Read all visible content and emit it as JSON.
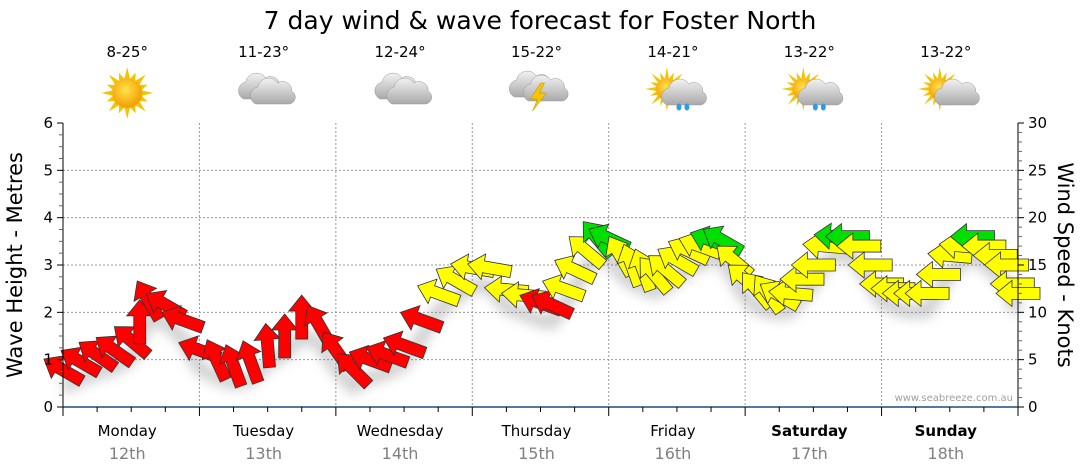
{
  "chart_data": {
    "type": "scatter",
    "title": "7 day wind & wave forecast for Foster North",
    "ylabel": "Wave Height - Metres",
    "y2label": "Wind Speed - Knots",
    "ylim": [
      0,
      6
    ],
    "y2lim": [
      0,
      30
    ],
    "yticks": [
      "0",
      "1",
      "2",
      "3",
      "4",
      "5",
      "6"
    ],
    "y2ticks": [
      "0",
      "5",
      "10",
      "15",
      "20",
      "25",
      "30"
    ],
    "grid": true,
    "watermark": "www.seabreeze.com.au",
    "days": [
      {
        "name": "Monday",
        "date": "12th",
        "temp": "8-25°",
        "icon": "sunny-icon",
        "bold": false
      },
      {
        "name": "Tuesday",
        "date": "13th",
        "temp": "11-23°",
        "icon": "cloudy-icon",
        "bold": false
      },
      {
        "name": "Wednesday",
        "date": "14th",
        "temp": "12-24°",
        "icon": "cloudy-icon",
        "bold": false
      },
      {
        "name": "Thursday",
        "date": "15th",
        "temp": "15-22°",
        "icon": "storm-icon",
        "bold": false
      },
      {
        "name": "Friday",
        "date": "16th",
        "temp": "14-21°",
        "icon": "sun-cloud-rain-icon",
        "bold": false
      },
      {
        "name": "Saturday",
        "date": "17th",
        "temp": "13-22°",
        "icon": "sun-cloud-rain-icon",
        "bold": true
      },
      {
        "name": "Sunday",
        "date": "18th",
        "temp": "13-22°",
        "icon": "sun-cloud-icon",
        "bold": true
      }
    ],
    "colors": {
      "red": "#ff0000",
      "yellow": "#ffff00",
      "green": "#00e000"
    },
    "wind_series_note": "t = hours from Monday 00:00, kt = wind speed knots, from = direction wind comes from (degrees)",
    "wind": [
      {
        "t": 0,
        "kt": 3.9,
        "from": 120,
        "c": "red"
      },
      {
        "t": 3,
        "kt": 4.8,
        "from": 120,
        "c": "red"
      },
      {
        "t": 6,
        "kt": 5.5,
        "from": 125,
        "c": "red"
      },
      {
        "t": 9,
        "kt": 6,
        "from": 125,
        "c": "red"
      },
      {
        "t": 12,
        "kt": 7,
        "from": 130,
        "c": "red"
      },
      {
        "t": 13.5,
        "kt": 9,
        "from": 180,
        "c": "red"
      },
      {
        "t": 15,
        "kt": 11.3,
        "from": 150,
        "c": "red"
      },
      {
        "t": 18,
        "kt": 10.8,
        "from": 120,
        "c": "red"
      },
      {
        "t": 21,
        "kt": 9.2,
        "from": 110,
        "c": "red"
      },
      {
        "t": 24,
        "kt": 6,
        "from": 110,
        "c": "red"
      },
      {
        "t": 27,
        "kt": 5,
        "from": 155,
        "c": "red"
      },
      {
        "t": 30,
        "kt": 4.4,
        "from": 160,
        "c": "red"
      },
      {
        "t": 33,
        "kt": 4.8,
        "from": 160,
        "c": "red"
      },
      {
        "t": 36,
        "kt": 6.5,
        "from": 175,
        "c": "red"
      },
      {
        "t": 39,
        "kt": 7.5,
        "from": 180,
        "c": "red"
      },
      {
        "t": 42,
        "kt": 9.5,
        "from": 180,
        "c": "red"
      },
      {
        "t": 45,
        "kt": 8.7,
        "from": 150,
        "c": "red"
      },
      {
        "t": 48,
        "kt": 6,
        "from": 145,
        "c": "red"
      },
      {
        "t": 51,
        "kt": 4,
        "from": 135,
        "c": "red"
      },
      {
        "t": 54,
        "kt": 5,
        "from": 110,
        "c": "red"
      },
      {
        "t": 57,
        "kt": 5.5,
        "from": 110,
        "c": "red"
      },
      {
        "t": 60,
        "kt": 6.5,
        "from": 110,
        "c": "red"
      },
      {
        "t": 63,
        "kt": 9.2,
        "from": 110,
        "c": "red"
      },
      {
        "t": 66,
        "kt": 12,
        "from": 110,
        "c": "yellow"
      },
      {
        "t": 69,
        "kt": 13.4,
        "from": 120,
        "c": "yellow"
      },
      {
        "t": 72,
        "kt": 14.7,
        "from": 100,
        "c": "yellow"
      },
      {
        "t": 75,
        "kt": 14.7,
        "from": 100,
        "c": "yellow"
      },
      {
        "t": 78,
        "kt": 12.4,
        "from": 95,
        "c": "yellow"
      },
      {
        "t": 81,
        "kt": 11.8,
        "from": 95,
        "c": "yellow"
      },
      {
        "t": 84,
        "kt": 11,
        "from": 110,
        "c": "red"
      },
      {
        "t": 86,
        "kt": 10.8,
        "from": 115,
        "c": "red"
      },
      {
        "t": 88,
        "kt": 12.5,
        "from": 110,
        "c": "yellow"
      },
      {
        "t": 90,
        "kt": 14.5,
        "from": 115,
        "c": "yellow"
      },
      {
        "t": 92,
        "kt": 16.5,
        "from": 130,
        "c": "yellow"
      },
      {
        "t": 94,
        "kt": 17.8,
        "from": 140,
        "c": "green"
      },
      {
        "t": 96,
        "kt": 17.8,
        "from": 115,
        "c": "green"
      },
      {
        "t": 98,
        "kt": 16,
        "from": 150,
        "c": "yellow"
      },
      {
        "t": 100,
        "kt": 15,
        "from": 160,
        "c": "yellow"
      },
      {
        "t": 102,
        "kt": 14.5,
        "from": 160,
        "c": "yellow"
      },
      {
        "t": 104,
        "kt": 14,
        "from": 140,
        "c": "yellow"
      },
      {
        "t": 106,
        "kt": 14.5,
        "from": 130,
        "c": "yellow"
      },
      {
        "t": 108,
        "kt": 15.5,
        "from": 120,
        "c": "yellow"
      },
      {
        "t": 110,
        "kt": 16.5,
        "from": 115,
        "c": "yellow"
      },
      {
        "t": 112,
        "kt": 17,
        "from": 110,
        "c": "yellow"
      },
      {
        "t": 114,
        "kt": 17.6,
        "from": 110,
        "c": "green"
      },
      {
        "t": 116,
        "kt": 17.6,
        "from": 120,
        "c": "green"
      },
      {
        "t": 118,
        "kt": 15.5,
        "from": 130,
        "c": "yellow"
      },
      {
        "t": 120,
        "kt": 13.5,
        "from": 130,
        "c": "yellow"
      },
      {
        "t": 122,
        "kt": 12.4,
        "from": 140,
        "c": "yellow"
      },
      {
        "t": 124,
        "kt": 12,
        "from": 145,
        "c": "yellow"
      },
      {
        "t": 126,
        "kt": 11.8,
        "from": 120,
        "c": "yellow"
      },
      {
        "t": 128,
        "kt": 12,
        "from": 95,
        "c": "yellow"
      },
      {
        "t": 130,
        "kt": 13.5,
        "from": 90,
        "c": "yellow"
      },
      {
        "t": 132,
        "kt": 15,
        "from": 90,
        "c": "yellow"
      },
      {
        "t": 134,
        "kt": 17,
        "from": 95,
        "c": "yellow"
      },
      {
        "t": 136,
        "kt": 18,
        "from": 95,
        "c": "green"
      },
      {
        "t": 138,
        "kt": 18,
        "from": 90,
        "c": "green"
      },
      {
        "t": 140,
        "kt": 17,
        "from": 90,
        "c": "yellow"
      },
      {
        "t": 142,
        "kt": 15,
        "from": 90,
        "c": "yellow"
      },
      {
        "t": 144,
        "kt": 13,
        "from": 90,
        "c": "yellow"
      },
      {
        "t": 146,
        "kt": 12.5,
        "from": 90,
        "c": "yellow"
      },
      {
        "t": 148,
        "kt": 12,
        "from": 90,
        "c": "yellow"
      },
      {
        "t": 150,
        "kt": 12,
        "from": 90,
        "c": "yellow"
      },
      {
        "t": 152,
        "kt": 12,
        "from": 90,
        "c": "yellow"
      },
      {
        "t": 154,
        "kt": 14,
        "from": 90,
        "c": "yellow"
      },
      {
        "t": 156,
        "kt": 16,
        "from": 95,
        "c": "yellow"
      },
      {
        "t": 158,
        "kt": 17,
        "from": 95,
        "c": "yellow"
      },
      {
        "t": 160,
        "kt": 18,
        "from": 90,
        "c": "green"
      },
      {
        "t": 162,
        "kt": 17,
        "from": 90,
        "c": "yellow"
      },
      {
        "t": 164,
        "kt": 16,
        "from": 90,
        "c": "yellow"
      },
      {
        "t": 166,
        "kt": 15,
        "from": 90,
        "c": "yellow"
      },
      {
        "t": 167,
        "kt": 13,
        "from": 90,
        "c": "yellow"
      },
      {
        "t": 168,
        "kt": 12,
        "from": 90,
        "c": "yellow"
      }
    ]
  }
}
